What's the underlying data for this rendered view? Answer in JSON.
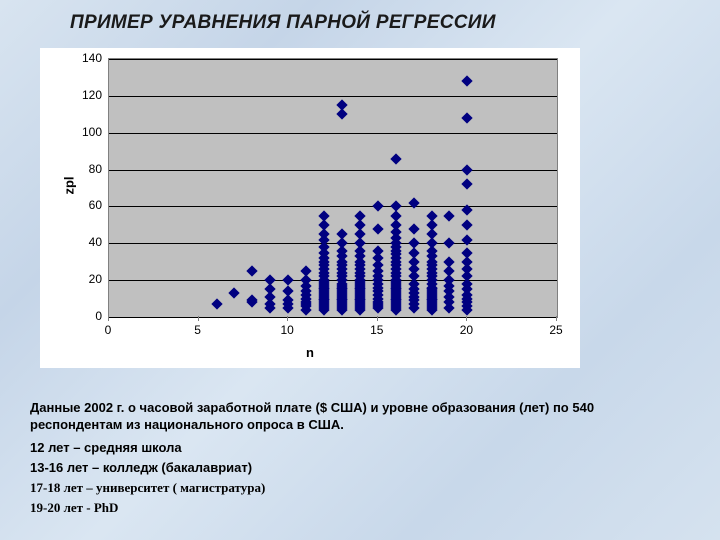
{
  "title": "ПРИМЕР УРАВНЕНИЯ ПАРНОЙ РЕГРЕССИИ",
  "chart": {
    "type": "scatter",
    "xlabel": "n",
    "ylabel": "zpl",
    "xlim": [
      0,
      25
    ],
    "ylim": [
      0,
      140
    ],
    "xtick_step": 5,
    "ytick_step": 20,
    "xticks": [
      0,
      5,
      10,
      15,
      20,
      25
    ],
    "yticks": [
      0,
      20,
      40,
      60,
      80,
      100,
      120,
      140
    ],
    "marker_color": "#000080",
    "marker_shape": "diamond",
    "marker_size": 8,
    "plot_bg": "#c0c0c0",
    "grid_color": "#000000",
    "chart_bg": "#ffffff",
    "label_fontsize": 13,
    "tick_fontsize": 12,
    "points": [
      [
        6,
        7
      ],
      [
        7,
        13
      ],
      [
        8,
        8
      ],
      [
        8,
        9
      ],
      [
        8,
        25
      ],
      [
        9,
        5
      ],
      [
        9,
        7
      ],
      [
        9,
        11
      ],
      [
        9,
        15
      ],
      [
        9,
        20
      ],
      [
        10,
        5
      ],
      [
        10,
        7
      ],
      [
        10,
        9
      ],
      [
        10,
        14
      ],
      [
        10,
        20
      ],
      [
        11,
        4
      ],
      [
        11,
        6
      ],
      [
        11,
        7
      ],
      [
        11,
        8
      ],
      [
        11,
        10
      ],
      [
        11,
        12
      ],
      [
        11,
        14
      ],
      [
        11,
        17
      ],
      [
        11,
        20
      ],
      [
        11,
        25
      ],
      [
        12,
        4
      ],
      [
        12,
        5
      ],
      [
        12,
        6
      ],
      [
        12,
        7
      ],
      [
        12,
        8
      ],
      [
        12,
        9
      ],
      [
        12,
        10
      ],
      [
        12,
        11
      ],
      [
        12,
        12
      ],
      [
        12,
        13
      ],
      [
        12,
        14
      ],
      [
        12,
        15
      ],
      [
        12,
        16
      ],
      [
        12,
        17
      ],
      [
        12,
        18
      ],
      [
        12,
        19
      ],
      [
        12,
        20
      ],
      [
        12,
        22
      ],
      [
        12,
        24
      ],
      [
        12,
        26
      ],
      [
        12,
        28
      ],
      [
        12,
        30
      ],
      [
        12,
        32
      ],
      [
        12,
        35
      ],
      [
        12,
        38
      ],
      [
        12,
        42
      ],
      [
        12,
        45
      ],
      [
        12,
        50
      ],
      [
        12,
        55
      ],
      [
        13,
        4
      ],
      [
        13,
        5
      ],
      [
        13,
        6
      ],
      [
        13,
        7
      ],
      [
        13,
        8
      ],
      [
        13,
        9
      ],
      [
        13,
        10
      ],
      [
        13,
        11
      ],
      [
        13,
        12
      ],
      [
        13,
        13
      ],
      [
        13,
        14
      ],
      [
        13,
        15
      ],
      [
        13,
        16
      ],
      [
        13,
        17
      ],
      [
        13,
        18
      ],
      [
        13,
        20
      ],
      [
        13,
        22
      ],
      [
        13,
        24
      ],
      [
        13,
        26
      ],
      [
        13,
        28
      ],
      [
        13,
        30
      ],
      [
        13,
        33
      ],
      [
        13,
        36
      ],
      [
        13,
        40
      ],
      [
        13,
        45
      ],
      [
        13,
        110
      ],
      [
        13,
        115
      ],
      [
        14,
        4
      ],
      [
        14,
        5
      ],
      [
        14,
        6
      ],
      [
        14,
        7
      ],
      [
        14,
        8
      ],
      [
        14,
        9
      ],
      [
        14,
        10
      ],
      [
        14,
        11
      ],
      [
        14,
        12
      ],
      [
        14,
        13
      ],
      [
        14,
        14
      ],
      [
        14,
        15
      ],
      [
        14,
        16
      ],
      [
        14,
        17
      ],
      [
        14,
        18
      ],
      [
        14,
        19
      ],
      [
        14,
        20
      ],
      [
        14,
        22
      ],
      [
        14,
        24
      ],
      [
        14,
        26
      ],
      [
        14,
        28
      ],
      [
        14,
        30
      ],
      [
        14,
        33
      ],
      [
        14,
        36
      ],
      [
        14,
        40
      ],
      [
        14,
        45
      ],
      [
        14,
        50
      ],
      [
        14,
        55
      ],
      [
        15,
        5
      ],
      [
        15,
        6
      ],
      [
        15,
        7
      ],
      [
        15,
        8
      ],
      [
        15,
        10
      ],
      [
        15,
        12
      ],
      [
        15,
        14
      ],
      [
        15,
        16
      ],
      [
        15,
        18
      ],
      [
        15,
        20
      ],
      [
        15,
        22
      ],
      [
        15,
        25
      ],
      [
        15,
        28
      ],
      [
        15,
        32
      ],
      [
        15,
        36
      ],
      [
        15,
        48
      ],
      [
        15,
        60
      ],
      [
        16,
        4
      ],
      [
        16,
        5
      ],
      [
        16,
        6
      ],
      [
        16,
        7
      ],
      [
        16,
        8
      ],
      [
        16,
        9
      ],
      [
        16,
        10
      ],
      [
        16,
        11
      ],
      [
        16,
        12
      ],
      [
        16,
        13
      ],
      [
        16,
        14
      ],
      [
        16,
        15
      ],
      [
        16,
        16
      ],
      [
        16,
        17
      ],
      [
        16,
        18
      ],
      [
        16,
        19
      ],
      [
        16,
        20
      ],
      [
        16,
        22
      ],
      [
        16,
        24
      ],
      [
        16,
        26
      ],
      [
        16,
        28
      ],
      [
        16,
        30
      ],
      [
        16,
        32
      ],
      [
        16,
        34
      ],
      [
        16,
        36
      ],
      [
        16,
        38
      ],
      [
        16,
        40
      ],
      [
        16,
        43
      ],
      [
        16,
        46
      ],
      [
        16,
        50
      ],
      [
        16,
        55
      ],
      [
        16,
        60
      ],
      [
        16,
        86
      ],
      [
        17,
        5
      ],
      [
        17,
        7
      ],
      [
        17,
        9
      ],
      [
        17,
        11
      ],
      [
        17,
        13
      ],
      [
        17,
        15
      ],
      [
        17,
        18
      ],
      [
        17,
        22
      ],
      [
        17,
        26
      ],
      [
        17,
        30
      ],
      [
        17,
        35
      ],
      [
        17,
        40
      ],
      [
        17,
        48
      ],
      [
        17,
        62
      ],
      [
        18,
        4
      ],
      [
        18,
        5
      ],
      [
        18,
        6
      ],
      [
        18,
        7
      ],
      [
        18,
        8
      ],
      [
        18,
        9
      ],
      [
        18,
        10
      ],
      [
        18,
        11
      ],
      [
        18,
        12
      ],
      [
        18,
        13
      ],
      [
        18,
        14
      ],
      [
        18,
        15
      ],
      [
        18,
        16
      ],
      [
        18,
        18
      ],
      [
        18,
        20
      ],
      [
        18,
        22
      ],
      [
        18,
        24
      ],
      [
        18,
        26
      ],
      [
        18,
        28
      ],
      [
        18,
        30
      ],
      [
        18,
        33
      ],
      [
        18,
        36
      ],
      [
        18,
        40
      ],
      [
        18,
        45
      ],
      [
        18,
        50
      ],
      [
        18,
        55
      ],
      [
        19,
        5
      ],
      [
        19,
        8
      ],
      [
        19,
        11
      ],
      [
        19,
        14
      ],
      [
        19,
        17
      ],
      [
        19,
        20
      ],
      [
        19,
        25
      ],
      [
        19,
        30
      ],
      [
        19,
        40
      ],
      [
        19,
        55
      ],
      [
        20,
        4
      ],
      [
        20,
        6
      ],
      [
        20,
        8
      ],
      [
        20,
        10
      ],
      [
        20,
        12
      ],
      [
        20,
        15
      ],
      [
        20,
        18
      ],
      [
        20,
        22
      ],
      [
        20,
        26
      ],
      [
        20,
        30
      ],
      [
        20,
        35
      ],
      [
        20,
        42
      ],
      [
        20,
        50
      ],
      [
        20,
        58
      ],
      [
        20,
        72
      ],
      [
        20,
        80
      ],
      [
        20,
        108
      ],
      [
        20,
        128
      ]
    ]
  },
  "captions": {
    "line1": "Данные 2002 г. о часовой заработной плате ($ США) и уровне образования (лет) по 540 респондентам из национального опроса в США.",
    "line2": "12 лет – средняя школа",
    "line3": "13-16 лет – колледж (бакалавриат)",
    "line4": "17-18 лет – университет ( магистратура)",
    "line5": "19-20 лет - PhD"
  }
}
